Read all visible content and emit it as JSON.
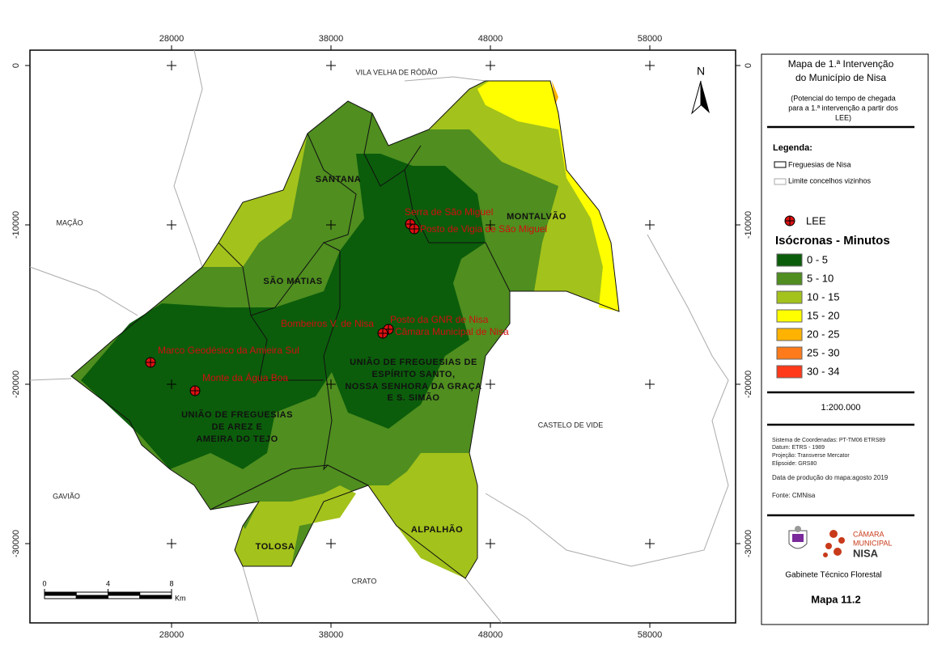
{
  "map": {
    "x_ticks": [
      28000,
      38000,
      48000,
      58000
    ],
    "y_ticks": [
      0,
      -10000,
      -20000,
      -30000
    ],
    "north": "N",
    "neighbors": [
      "VILA VELHA DE RÓDÃO",
      "MAÇÃO",
      "GAVIÃO",
      "CRATO",
      "CASTELO DE VIDE"
    ],
    "parishes": [
      {
        "lines": [
          "SANTANA"
        ]
      },
      {
        "lines": [
          "MONTALVÃO"
        ]
      },
      {
        "lines": [
          "SÃO MATIAS"
        ]
      },
      {
        "lines": [
          "UNIÃO DE FREGUESIAS DE",
          "ESPÍRITO SANTO,",
          "NOSSA SENHORA DA GRAÇA",
          "E S. SIMÃO"
        ]
      },
      {
        "lines": [
          "UNIÃO DE FREGUESIAS",
          "DE AREZ E",
          "AMEIRA DO TEJO"
        ]
      },
      {
        "lines": [
          "TOLOSA"
        ]
      },
      {
        "lines": [
          "ALPALHÃO"
        ]
      }
    ],
    "lee_points": [
      "Serra de São Miguel",
      "Posto de Vigia de São Miguel",
      "Posto da GNR de Nisa",
      "Bombeiros V. de Nisa",
      "Câmara Municipal de Nisa",
      "Marco Geodésico da Amieira Sul",
      "Monte da Água Boa"
    ],
    "scale_bar": {
      "ticks": [
        0,
        4,
        8
      ],
      "unit": "Km"
    }
  },
  "panel": {
    "title": [
      "Mapa de 1.ª Intervenção",
      "do Município de Nisa"
    ],
    "subtitle": [
      "(Potencial do tempo de chegada",
      "para a 1.ª intervenção a partir dos",
      "LEE)"
    ],
    "legend_heading": "Legenda:",
    "boundaries": [
      "Freguesias de Nisa",
      "Limite concelhos vizinhos"
    ],
    "lee_label": "LEE",
    "isochrone_heading": "Isócronas - Minutos",
    "isochrones": [
      {
        "label": "0 - 5",
        "color": "#0b5d0b"
      },
      {
        "label": "5 - 10",
        "color": "#4f8e1f"
      },
      {
        "label": "10 - 15",
        "color": "#a3c21b"
      },
      {
        "label": "15 - 20",
        "color": "#ffff00"
      },
      {
        "label": "20 - 25",
        "color": "#ffb300"
      },
      {
        "label": "25 - 30",
        "color": "#ff7a1a"
      },
      {
        "label": "30 - 34",
        "color": "#ff3a1a"
      }
    ],
    "scale": "1:200.000",
    "metadata": [
      "Sistema de Coordenadas: PT-TM06 ETRS89",
      "Datum:  ETRS - 1989",
      "Projeção: Transverse Mercator",
      "Elipsoide: GRS80"
    ],
    "date": "Data de produção do mapa:agosto 2019",
    "source": "Fonte: CMNisa",
    "logo_text": [
      "CÂMARA",
      "MUNICIPAL",
      "NISA"
    ],
    "office": "Gabinete Técnico Florestal",
    "map_number": "Mapa 11.2"
  }
}
